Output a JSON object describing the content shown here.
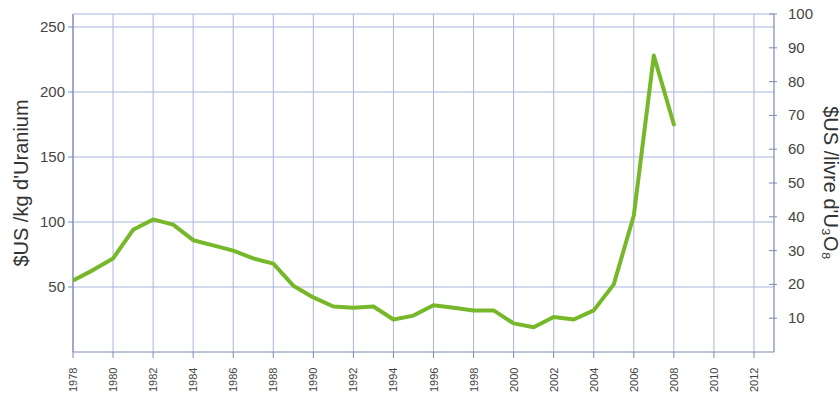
{
  "chart_data": {
    "type": "line",
    "y_label": "$US /kg d'Uranium",
    "y2_label": "$US /livre d'U₃O₈",
    "x": [
      1978,
      1979,
      1980,
      1981,
      1982,
      1983,
      1984,
      1985,
      1986,
      1987,
      1988,
      1989,
      1990,
      1991,
      1992,
      1993,
      1994,
      1995,
      1996,
      1997,
      1998,
      1999,
      2000,
      2001,
      2002,
      2003,
      2004,
      2005,
      2006,
      2007,
      2008
    ],
    "series": [
      {
        "color": "#76b82a",
        "values": [
          55,
          63,
          72,
          94,
          102,
          98,
          86,
          82,
          78,
          72,
          68,
          51,
          42,
          35,
          34,
          35,
          25,
          28,
          36,
          34,
          32,
          32,
          22,
          19,
          27,
          25,
          32,
          52,
          105,
          228,
          175
        ]
      }
    ],
    "xlim": [
      1978,
      2013
    ],
    "xticks": [
      1978,
      1980,
      1982,
      1984,
      1986,
      1988,
      1990,
      1992,
      1994,
      1996,
      1998,
      2000,
      2002,
      2004,
      2006,
      2008,
      2010,
      2012
    ],
    "ylim": [
      0,
      260
    ],
    "yticks": [
      50,
      100,
      150,
      200,
      250
    ],
    "y2lim": [
      0,
      100
    ],
    "y2ticks": [
      10,
      20,
      30,
      40,
      50,
      60,
      70,
      80,
      90,
      100
    ],
    "grid": true
  }
}
